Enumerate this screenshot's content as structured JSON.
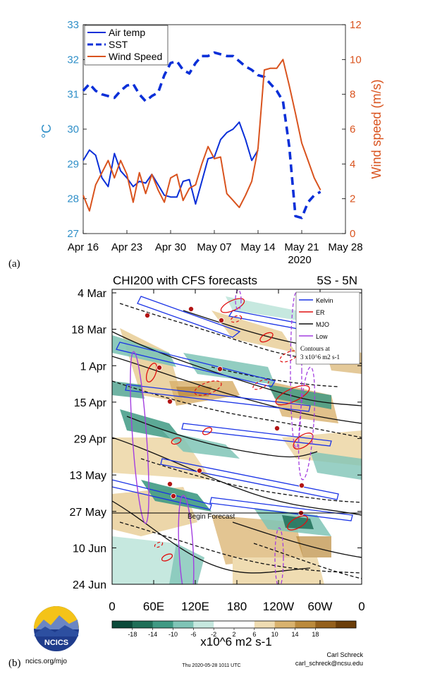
{
  "panel_a": {
    "tag": "(a)",
    "year_label": "2020",
    "left_axis_label": "°C",
    "right_axis_label": "Wind speed (m/s)",
    "legend": [
      "Air temp",
      "SST",
      "Wind Speed"
    ],
    "colors": {
      "air": "#0a2fd8",
      "sst": "#0a2fd8",
      "wind": "#d9531e",
      "left_axis": "#2f8fc8",
      "right_axis": "#d9531e"
    }
  },
  "panel_b": {
    "tag": "(b)",
    "title": "CHI200 with CFS forecasts",
    "lat_band": "5S - 5N",
    "begin_forecast": "Begin Forecast",
    "legend": [
      "Kelvin",
      "ER",
      "MJO",
      "Low"
    ],
    "contour_note": [
      "Contours at",
      "3 x10^6 m2 s-1"
    ],
    "colorbar_label": "x10^6 m2 s-1",
    "footer_url": "ncics.org/mjo",
    "footer_time": "Thu 2020-05-28 1011 UTC",
    "author": "Carl Schreck",
    "author_email": "carl_schreck@ncsu.edu",
    "logo_text": "NCICS",
    "colors": {
      "kelvin": "#1a33e6",
      "er": "#e01010",
      "mjo": "#111111",
      "low": "#a33fe0"
    }
  },
  "chart_data": [
    {
      "type": "line",
      "panel": "(a)",
      "x_ticks": [
        "Apr 16",
        "Apr 23",
        "Apr 30",
        "May 07",
        "May 14",
        "May 21",
        "May 28"
      ],
      "x_day_range": [
        0,
        42
      ],
      "ylim_left": [
        27,
        33
      ],
      "yticks_left": [
        27,
        28,
        29,
        30,
        31,
        32,
        33
      ],
      "ylim_right": [
        0,
        12
      ],
      "yticks_right": [
        0,
        2,
        4,
        6,
        8,
        10,
        12
      ],
      "series": [
        {
          "name": "Air temp",
          "axis": "left",
          "style": "solid",
          "days": [
            0,
            1,
            2,
            3,
            4,
            5,
            6,
            7,
            8,
            9,
            10,
            11,
            12,
            13,
            14,
            15,
            16,
            17,
            18,
            19,
            20,
            21,
            22,
            23,
            24,
            25,
            26,
            27,
            28
          ],
          "values": [
            29.1,
            29.4,
            29.25,
            28.6,
            28.35,
            29.3,
            28.8,
            28.6,
            28.35,
            28.5,
            28.45,
            28.7,
            28.4,
            28.1,
            28.05,
            28.05,
            28.5,
            28.55,
            27.85,
            28.5,
            29.15,
            29.2,
            29.7,
            29.9,
            30.0,
            30.2,
            29.7,
            29.1,
            29.4
          ]
        },
        {
          "name": "SST",
          "axis": "left",
          "style": "dashed",
          "days": [
            0,
            1,
            2,
            3,
            4,
            5,
            6,
            7,
            8,
            9,
            10,
            11,
            12,
            13,
            14,
            15,
            16,
            17,
            18,
            19,
            20,
            21,
            22,
            23,
            24,
            25,
            26,
            27,
            28,
            29,
            30,
            31,
            32,
            33,
            34,
            35,
            36,
            37,
            38
          ],
          "values": [
            31.1,
            31.3,
            31.1,
            31.0,
            30.95,
            30.9,
            31.1,
            31.25,
            31.3,
            31.0,
            30.8,
            30.95,
            31.05,
            31.55,
            31.9,
            31.95,
            31.7,
            31.6,
            31.9,
            32.1,
            32.1,
            32.2,
            32.15,
            32.1,
            32.1,
            31.95,
            31.8,
            31.7,
            31.55,
            31.5,
            31.3,
            31.1,
            30.8,
            29.5,
            27.5,
            27.45,
            27.9,
            28.1,
            28.2
          ]
        },
        {
          "name": "Wind Speed",
          "axis": "right",
          "style": "solid",
          "days": [
            0,
            1,
            2,
            3,
            4,
            5,
            6,
            7,
            8,
            9,
            10,
            11,
            12,
            13,
            14,
            15,
            16,
            17,
            18,
            19,
            20,
            21,
            22,
            23,
            24,
            25,
            26,
            27,
            28,
            29,
            30,
            31,
            32,
            33,
            34,
            35,
            36,
            37,
            38
          ],
          "values": [
            2.2,
            1.3,
            2.8,
            3.5,
            4.2,
            3.2,
            4.2,
            3.4,
            1.8,
            3.5,
            2.3,
            3.4,
            2.5,
            1.8,
            3.2,
            3.4,
            1.9,
            2.6,
            2.8,
            4.0,
            5.0,
            4.3,
            4.4,
            2.3,
            1.9,
            1.5,
            2.2,
            3.0,
            4.9,
            9.4,
            9.5,
            9.5,
            10.0,
            8.5,
            6.9,
            5.2,
            4.2,
            3.2,
            2.5
          ]
        }
      ]
    },
    {
      "type": "heatmap",
      "panel": "(b)",
      "title": "CHI200 with CFS forecasts",
      "x_ticks": [
        "0",
        "60E",
        "120E",
        "180",
        "120W",
        "60W",
        "0"
      ],
      "y_ticks": [
        "4 Mar",
        "18 Mar",
        "1 Apr",
        "15 Apr",
        "29 Apr",
        "13 May",
        "27 May",
        "10 Jun",
        "24 Jun"
      ],
      "colorbar_ticks": [
        "-18",
        "-14",
        "-10",
        "-6",
        "-2",
        "2",
        "6",
        "10",
        "14",
        "18"
      ],
      "colorbar_colors": [
        "#0b4a3a",
        "#1f6f58",
        "#3f9a84",
        "#7fc4b6",
        "#c6e8df",
        "#ffffff",
        "#ffffff",
        "#efdcb2",
        "#d9b26e",
        "#bb8a3c",
        "#94601c",
        "#6c3e0a"
      ],
      "forecast_start": "27 May"
    }
  ]
}
